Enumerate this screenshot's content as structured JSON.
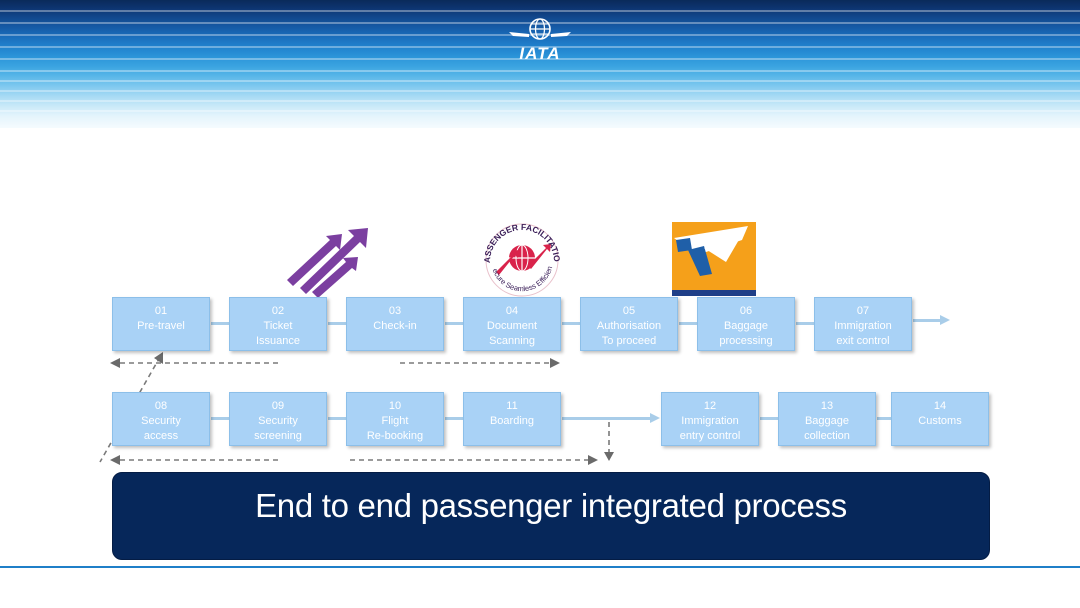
{
  "header": {
    "logo_text": "IATA",
    "logo_icon": "globe-wings-icon"
  },
  "badges": {
    "facilitation_top": "PASSENGER FACILITATION",
    "facilitation_bottom": "Secure  Seamless  Efficient",
    "arrows_icon": "purple-arrows-icon",
    "plane_icon": "orange-plane-icon"
  },
  "row1": [
    {
      "num": "01",
      "line1": "Pre-travel",
      "line2": ""
    },
    {
      "num": "02",
      "line1": "Ticket",
      "line2": "Issuance"
    },
    {
      "num": "03",
      "line1": "Check-in",
      "line2": ""
    },
    {
      "num": "04",
      "line1": "Document",
      "line2": "Scanning"
    },
    {
      "num": "05",
      "line1": "Authorisation",
      "line2": "To proceed"
    },
    {
      "num": "06",
      "line1": "Baggage",
      "line2": "processing"
    },
    {
      "num": "07",
      "line1": "Immigration",
      "line2": "exit control"
    }
  ],
  "row2": [
    {
      "num": "08",
      "line1": "Security",
      "line2": "access"
    },
    {
      "num": "09",
      "line1": "Security",
      "line2": "screening"
    },
    {
      "num": "10",
      "line1": "Flight",
      "line2": "Re-booking"
    },
    {
      "num": "11",
      "line1": "Boarding",
      "line2": ""
    },
    {
      "num": "12",
      "line1": "Immigration",
      "line2": "entry control"
    },
    {
      "num": "13",
      "line1": "Baggage",
      "line2": "collection"
    },
    {
      "num": "14",
      "line1": "Customs",
      "line2": ""
    }
  ],
  "banner": {
    "text": "End to end passenger integrated process"
  },
  "colors": {
    "box_fill": "#a9d2f6",
    "banner_fill": "#06275a",
    "accent_purple": "#7b3fa0",
    "accent_red": "#d9234b",
    "accent_orange": "#f5a01a",
    "accent_blue": "#1f5fa8"
  }
}
